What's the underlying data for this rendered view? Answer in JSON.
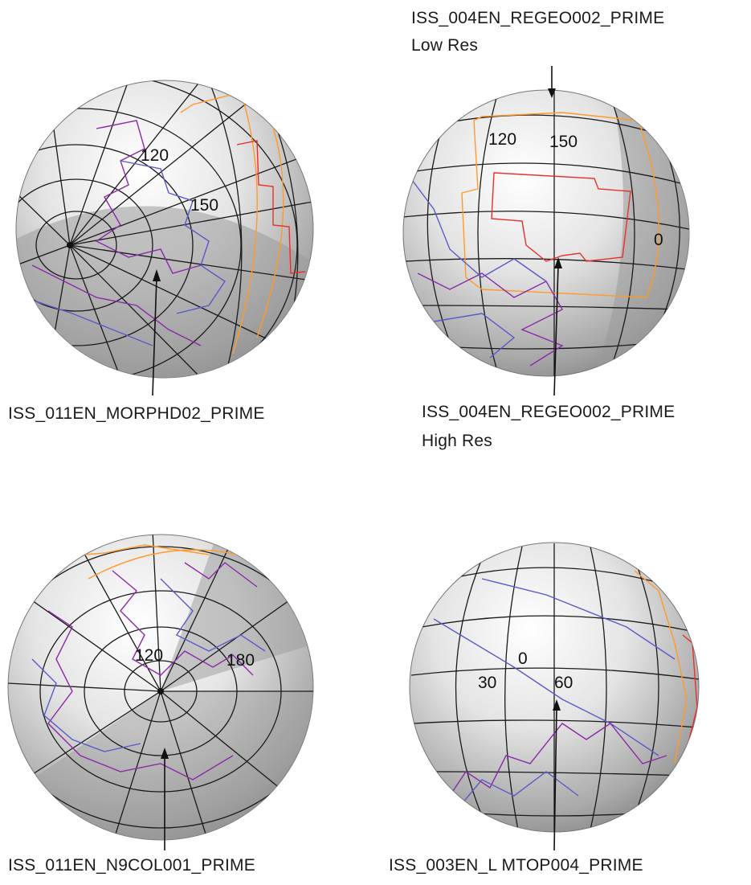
{
  "captions": {
    "top_left": "ISS_011EN_MORPHD02_PRIME",
    "top_right_top_line1": "ISS_004EN_REGEO002_PRIME",
    "top_right_top_line2": "Low Res",
    "top_right_bottom_line1": "ISS_004EN_REGEO002_PRIME",
    "top_right_bottom_line2": "High Res",
    "bottom_left": "ISS_011EN_N9COL001_PRIME",
    "bottom_right": "ISS_003EN_L MTOP004_PRIME"
  },
  "globe_labels": {
    "top_left": [
      "120",
      "150"
    ],
    "top_right": [
      "120",
      "150",
      "0"
    ],
    "bottom_left": [
      "120",
      "180"
    ],
    "bottom_right": [
      "0",
      "30",
      "60"
    ]
  },
  "colors": {
    "grid": "#1a1a1a",
    "footprint_orange": "#ff9a2a",
    "footprint_red": "#e8302a",
    "footprint_purple": "#8a2aa8",
    "footprint_blue": "#5a5ac8",
    "sphere_light": "#ffffff",
    "sphere_shade": "#8c8c8c"
  }
}
